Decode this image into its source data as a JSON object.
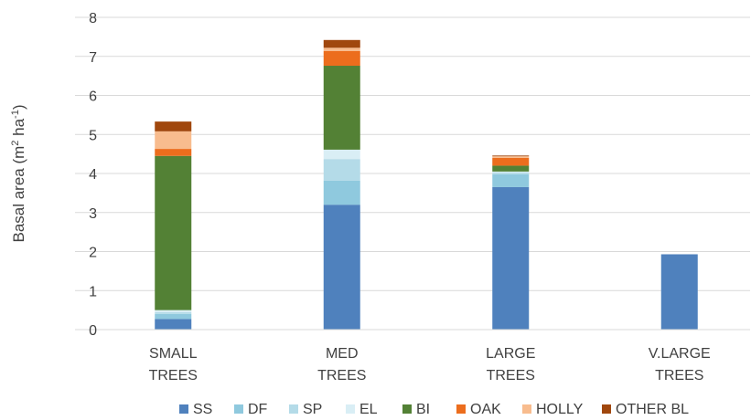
{
  "chart_data": {
    "type": "bar",
    "stacked": true,
    "categories": [
      [
        "SMALL",
        "TREES"
      ],
      [
        "MED",
        "TREES"
      ],
      [
        "LARGE",
        "TREES"
      ],
      [
        "V.LARGE",
        "TREES"
      ]
    ],
    "ylabel": {
      "main": "Basal area (m",
      "sup1": "2",
      "mid": " ha",
      "sup2": "-1",
      "end": ")"
    },
    "ylim": [
      0,
      8
    ],
    "yticks": [
      0,
      1,
      2,
      3,
      4,
      5,
      6,
      7,
      8
    ],
    "legend_position": "bottom",
    "series": [
      {
        "name": "SS",
        "color": "#4f81bd",
        "values": [
          0.27,
          3.2,
          3.65,
          1.93
        ]
      },
      {
        "name": "DF",
        "color": "#8fc9de",
        "values": [
          0.13,
          0.62,
          0.33,
          0
        ]
      },
      {
        "name": "SP",
        "color": "#b4dbe8",
        "values": [
          0.05,
          0.55,
          0.05,
          0
        ]
      },
      {
        "name": "EL",
        "color": "#d9eef5",
        "values": [
          0.05,
          0.24,
          0.02,
          0
        ]
      },
      {
        "name": "BI",
        "color": "#538135",
        "values": [
          3.95,
          2.15,
          0.15,
          0
        ]
      },
      {
        "name": "OAK",
        "color": "#ec6d1d",
        "values": [
          0.18,
          0.38,
          0.2,
          0
        ]
      },
      {
        "name": "HOLLY",
        "color": "#f8bc8e",
        "values": [
          0.45,
          0.08,
          0.04,
          0
        ]
      },
      {
        "name": "OTHER BL",
        "color": "#a0470d",
        "values": [
          0.25,
          0.2,
          0.02,
          0
        ]
      }
    ]
  }
}
